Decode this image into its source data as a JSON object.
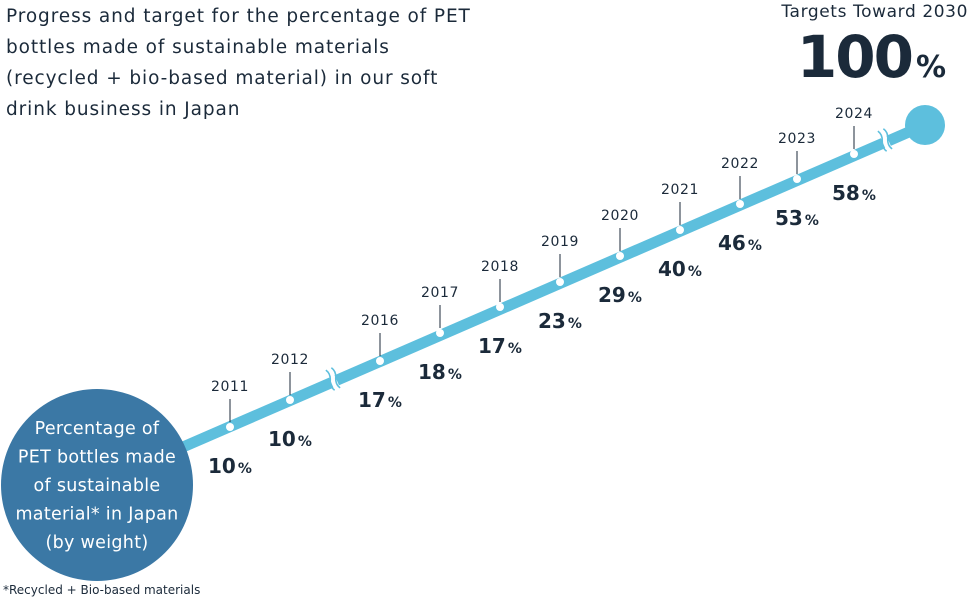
{
  "title": "Progress and target for the percentage of PET bottles made of sustainable materials (recycled + bio-based material) in our soft drink business in Japan",
  "target": {
    "label": "Targets Toward 2030",
    "value": "100",
    "unit": "%"
  },
  "circle_label_lines": [
    "Percentage of",
    "PET bottles made",
    "of sustainable",
    "material* in Japan",
    "(by weight)"
  ],
  "footnote": "*Recycled + Bio-based materials",
  "colors": {
    "line": "#5dbfdd",
    "circle": "#3b78a5",
    "text": "#1b2a3a",
    "end_dot": "#5dbfdd"
  },
  "chart_data": {
    "type": "line",
    "x": [
      "2011",
      "2012",
      "2016",
      "2017",
      "2018",
      "2019",
      "2020",
      "2021",
      "2022",
      "2023",
      "2024"
    ],
    "values": [
      10,
      10,
      17,
      18,
      17,
      23,
      29,
      40,
      46,
      53,
      58
    ],
    "unit": "%",
    "target": {
      "year": "2030",
      "value": 100
    }
  }
}
